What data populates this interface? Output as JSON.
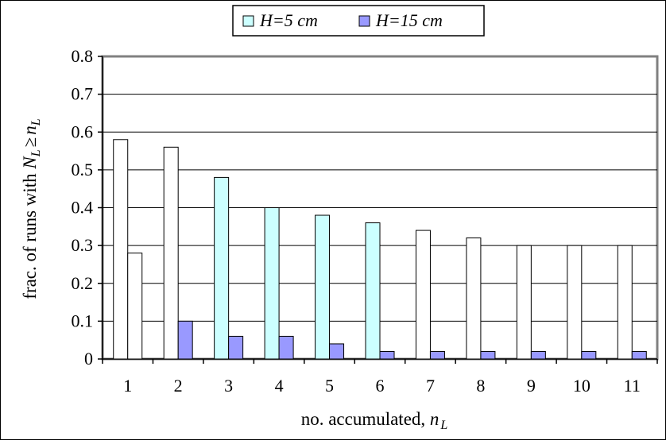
{
  "chart_data": {
    "type": "bar",
    "categories": [
      "1",
      "2",
      "3",
      "4",
      "5",
      "6",
      "7",
      "8",
      "9",
      "10",
      "11"
    ],
    "series": [
      {
        "name": "H=5 cm",
        "values": [
          0.58,
          0.56,
          0.48,
          0.4,
          0.38,
          0.36,
          0.34,
          0.32,
          0.3,
          0.3,
          0.3
        ],
        "fill_colors": [
          "#ffffff",
          "#ffffff",
          "#ccffff",
          "#ccffff",
          "#ccffff",
          "#ccffff",
          "#ffffff",
          "#ffffff",
          "#ffffff",
          "#ffffff",
          "#ffffff"
        ]
      },
      {
        "name": "H=15 cm",
        "values": [
          0.28,
          0.1,
          0.06,
          0.06,
          0.04,
          0.02,
          0.02,
          0.02,
          0.02,
          0.02,
          0.02
        ],
        "fill_colors": [
          "#ffffff",
          "#9999ff",
          "#9999ff",
          "#9999ff",
          "#9999ff",
          "#9999ff",
          "#9999ff",
          "#9999ff",
          "#9999ff",
          "#9999ff",
          "#9999ff"
        ]
      }
    ],
    "legend_colors": [
      "#ccffff",
      "#9999ff"
    ],
    "ylim": [
      0,
      0.8
    ],
    "yticks": [
      "0",
      "0.1",
      "0.2",
      "0.3",
      "0.4",
      "0.5",
      "0.6",
      "0.7",
      "0.8"
    ],
    "xlabel": "no. accumulated, n L",
    "xlabel_main": "no. accumulated, ",
    "xlabel_var": "n",
    "xlabel_sub": "L",
    "ylabel": "frac. of runs with N L ≥ n L",
    "ylabel_main": "frac. of runs with ",
    "ylabel_var1": "N",
    "ylabel_sub1": "L",
    "ylabel_op": "≥",
    "ylabel_var2": "n",
    "ylabel_sub2": "L",
    "grid": true,
    "legend_position": "top-center"
  }
}
